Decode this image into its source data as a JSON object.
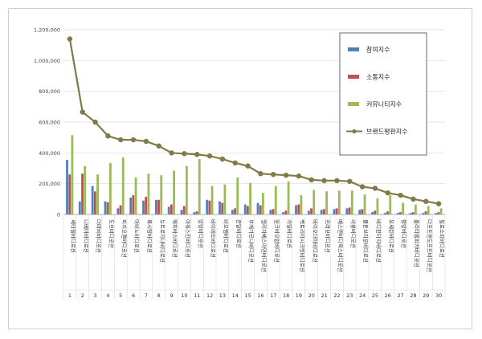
{
  "chart_data": {
    "type": "bar",
    "categories": [
      "세타필바디로션",
      "니베아바디로션",
      "더마비바디로션",
      "도브바디로션",
      "피지오겔바디로션",
      "아비노바디로션",
      "록시땅바디로션",
      "뉴트로지나바디로션",
      "해피바스바디로션",
      "아워스킨바디로션",
      "앙방바디로션",
      "바이레도바디로션",
      "비오템바디로션",
      "쿤달바디로션",
      "부케가르니바디로션",
      "엘리자베스아덴바디로션",
      "일크바오밥바디로션",
      "카밀바디로션",
      "벡토리아시크릿바디로션",
      "바이오더마바디로션",
      "르라보바디로션",
      "베스앤바디웍스바디로션",
      "사봉바디로션",
      "몰튼브라운바디로션",
      "바디판타지바디로션",
      "유세린바디로션",
      "향방바디로션",
      "롤리타렘피카바디로션",
      "더프트앤도프트바디로션",
      "필로소피바디로션"
    ],
    "x_index_labels": [
      "1",
      "2",
      "3",
      "4",
      "5",
      "6",
      "7",
      "8",
      "9",
      "10",
      "11",
      "12",
      "13",
      "14",
      "15",
      "16",
      "17",
      "18",
      "19",
      "20",
      "21",
      "22",
      "23",
      "24",
      "25",
      "26",
      "27",
      "28",
      "29",
      "30"
    ],
    "series": [
      {
        "name": "참여지수",
        "color": "#4f81bd",
        "values": [
          355000,
          85000,
          185000,
          85000,
          40000,
          110000,
          90000,
          95000,
          50000,
          30000,
          15000,
          95000,
          85000,
          30000,
          65000,
          75000,
          30000,
          15000,
          60000,
          25000,
          30000,
          35000,
          40000,
          30000,
          15000,
          10000,
          10000,
          10000,
          10000,
          10000
        ]
      },
      {
        "name": "소통지수",
        "color": "#c0504d",
        "values": [
          260000,
          265000,
          150000,
          80000,
          60000,
          125000,
          115000,
          95000,
          65000,
          55000,
          20000,
          90000,
          75000,
          40000,
          55000,
          60000,
          35000,
          25000,
          65000,
          40000,
          35000,
          40000,
          45000,
          35000,
          25000,
          20000,
          15000,
          15000,
          20000,
          15000
        ]
      },
      {
        "name": "커뮤니티지수",
        "color": "#9bbb59",
        "values": [
          515000,
          315000,
          260000,
          335000,
          370000,
          240000,
          265000,
          255000,
          285000,
          315000,
          360000,
          185000,
          195000,
          240000,
          205000,
          140000,
          185000,
          215000,
          125000,
          160000,
          150000,
          155000,
          155000,
          130000,
          105000,
          125000,
          75000,
          65000,
          55000,
          40000
        ]
      },
      {
        "name": "브랜드평판지수",
        "color": "#7f7a46",
        "values": [
          1140000,
          665000,
          600000,
          510000,
          485000,
          485000,
          475000,
          445000,
          400000,
          395000,
          390000,
          380000,
          360000,
          335000,
          315000,
          265000,
          260000,
          255000,
          250000,
          225000,
          220000,
          220000,
          215000,
          180000,
          170000,
          140000,
          125000,
          100000,
          85000,
          70000
        ]
      }
    ],
    "ylim": [
      0,
      1200000
    ],
    "yticks": [
      "0",
      "200,000",
      "400,000",
      "600,000",
      "800,000",
      "1,000,000",
      "1,200,000"
    ],
    "ytick_values": [
      0,
      200000,
      400000,
      600000,
      800000,
      1000000,
      1200000
    ],
    "grid": true,
    "legend": "top-right"
  }
}
